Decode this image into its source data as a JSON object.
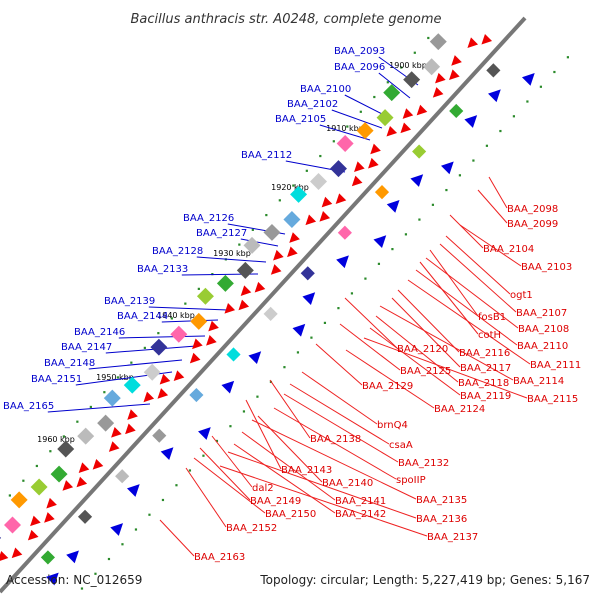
{
  "title": "Bacillus anthracis str. A0248, complete genome",
  "footer": {
    "accession": "Accession: NC_012659",
    "summary": "Topology: circular; Length: 5,227,419 bp; Genes: 5,167"
  },
  "colors": {
    "forward_label": "#0000cc",
    "reverse_label": "#dd0000",
    "backbone": "#777777"
  },
  "ticks": [
    "1900 kbp",
    "1910 kbp",
    "1920 kbp",
    "1930 kbp",
    "1940 kbp",
    "1950 kbp",
    "1960 kbp"
  ],
  "forward_genes": [
    "BAA_2093",
    "BAA_2096",
    "BAA_2100",
    "BAA_2102",
    "BAA_2105",
    "BAA_2112",
    "BAA_2126",
    "BAA_2127",
    "BAA_2128",
    "BAA_2133",
    "BAA_2139",
    "BAA_2144",
    "BAA_2146",
    "BAA_2147",
    "BAA_2148",
    "BAA_2151",
    "BAA_2165"
  ],
  "reverse_genes": [
    "BAA_2098",
    "BAA_2099",
    "BAA_2104",
    "BAA_2103",
    "ogt1",
    "BAA_2107",
    "fosB1",
    "BAA_2108",
    "cotH",
    "BAA_2110",
    "BAA_2111",
    "BAA_2120",
    "BAA_2116",
    "BAA_2117",
    "BAA_2114",
    "BAA_2118",
    "BAA_2125",
    "BAA_2119",
    "BAA_2115",
    "BAA_2129",
    "BAA_2124",
    "brnQ4",
    "BAA_2138",
    "csaA",
    "BAA_2132",
    "BAA_2143",
    "spoIIP",
    "BAA_2140",
    "dal2",
    "BAA_2135",
    "BAA_2141",
    "BAA_2149",
    "BAA_2142",
    "BAA_2150",
    "BAA_2136",
    "BAA_2152",
    "BAA_2137",
    "BAA_2163"
  ]
}
